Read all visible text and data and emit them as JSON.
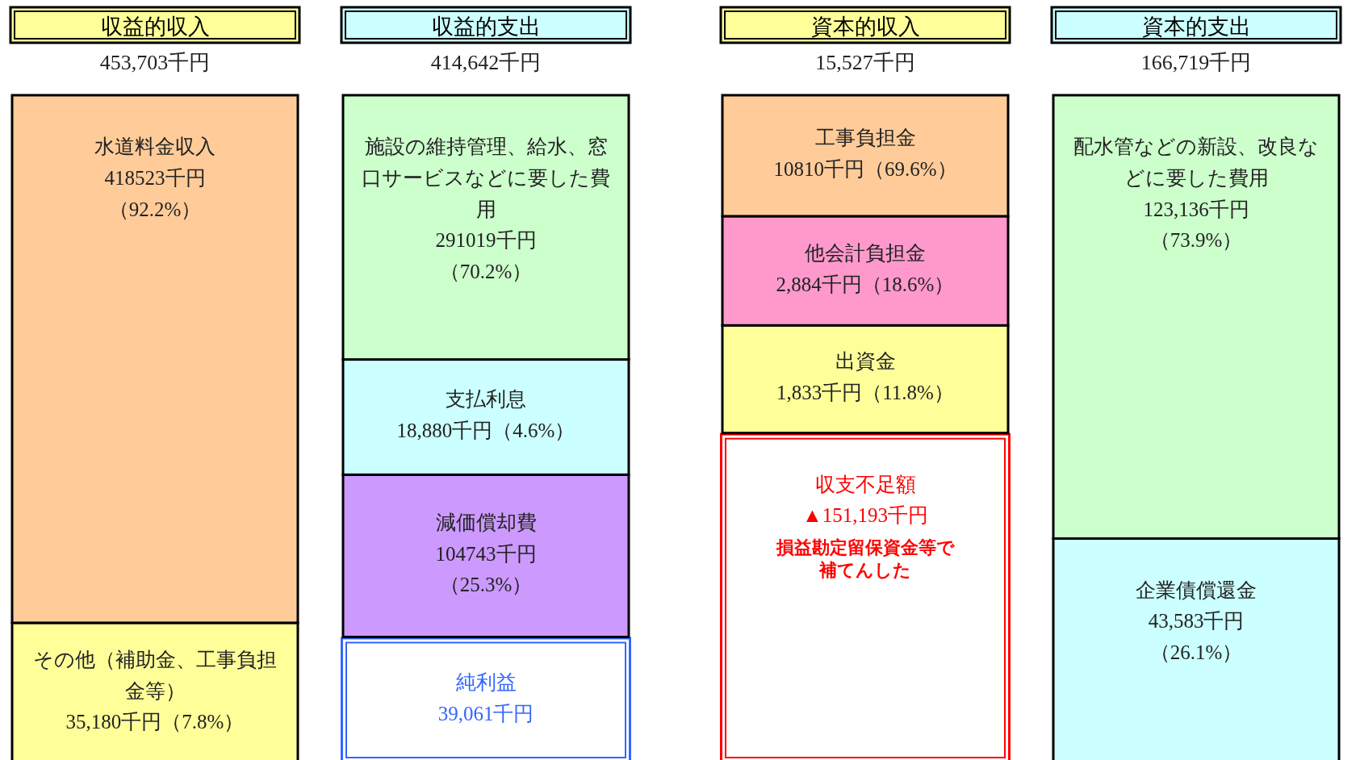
{
  "chart_data": {
    "type": "other",
    "categories": [
      "収益的収入",
      "収益的支出",
      "資本的収入",
      "資本的支出"
    ],
    "colors": [
      "#ffff99",
      "#ccffff",
      "#ffff99",
      "#ccffff"
    ],
    "totals": [
      "453,703千円",
      "414,642千円",
      "15,527千円",
      "166,719千円"
    ],
    "series": [
      {
        "name": "その他（補助金、工事負担金等）",
        "color": "#ffff99",
        "values": [
          35180,
          null,
          null,
          null
        ],
        "value_labels": [
          "35,180千円（7.8%）",
          null,
          null,
          null
        ]
      },
      {
        "name": "水道料金収入",
        "color": "#ffcc99",
        "values": [
          418523,
          null,
          null,
          null
        ],
        "value_labels": [
          "418523千円（92.2%）",
          null,
          null,
          null
        ]
      },
      {
        "name": "純利益",
        "color": "#3366ff",
        "type": "other",
        "values": [
          null,
          39061,
          null,
          null
        ],
        "value_labels": [
          null,
          "39,061千円",
          null,
          null
        ]
      },
      {
        "name": "減価償却費",
        "color": "#cc99ff",
        "values": [
          null,
          104743,
          null,
          null
        ],
        "value_labels": [
          null,
          "104743千円（25.3%）",
          null,
          null
        ]
      },
      {
        "name": "支払利息",
        "color": "#ccffff",
        "values": [
          null,
          18880,
          null,
          null
        ],
        "value_labels": [
          null,
          "18,880千円（4.6%）",
          null,
          null
        ]
      },
      {
        "name": "施設の維持管理、給水、窓口サービスなどに要した費用",
        "color": "#ccffcc",
        "values": [
          null,
          291019,
          null,
          null
        ],
        "value_labels": [
          null,
          "291019千円（70.2%）",
          null,
          null
        ]
      },
      {
        "name": "収支不足額",
        "color": "#ff0000",
        "type": "other",
        "values": [
          null,
          null,
          151193,
          null
        ],
        "value_labels": [
          null,
          null,
          "▲151,193千円",
          null
        ]
      },
      {
        "name": "出資金",
        "color": "#ffff99",
        "values": [
          null,
          null,
          1833,
          null
        ],
        "value_labels": [
          null,
          null,
          "1,833千円（11.8%）",
          null
        ]
      },
      {
        "name": "他会計負担金",
        "color": "#ff99cc",
        "values": [
          null,
          null,
          2884,
          null
        ],
        "value_labels": [
          null,
          null,
          "2,884千円（18.6%）",
          null
        ]
      },
      {
        "name": "工事負担金",
        "color": "#ffcc99",
        "values": [
          null,
          null,
          10810,
          null
        ],
        "value_labels": [
          null,
          null,
          "10810千円（69.6%）",
          null
        ]
      },
      {
        "name": "企業債償還金",
        "color": "#ccffff",
        "values": [
          null,
          null,
          null,
          43583
        ],
        "value_labels": [
          null,
          null,
          null,
          "43,583千円（26.1%）"
        ]
      },
      {
        "name": "配水管などの新設、改良などに要した費用",
        "color": "#ccffcc",
        "values": [
          null,
          null,
          null,
          123136
        ],
        "value_labels": [
          null,
          null,
          null,
          "123,136千円（73.9%）"
        ]
      }
    ],
    "annotations": [
      {
        "text": "損益勘定留保資金等で補てんした",
        "x": "資本的収入"
      }
    ]
  }
}
